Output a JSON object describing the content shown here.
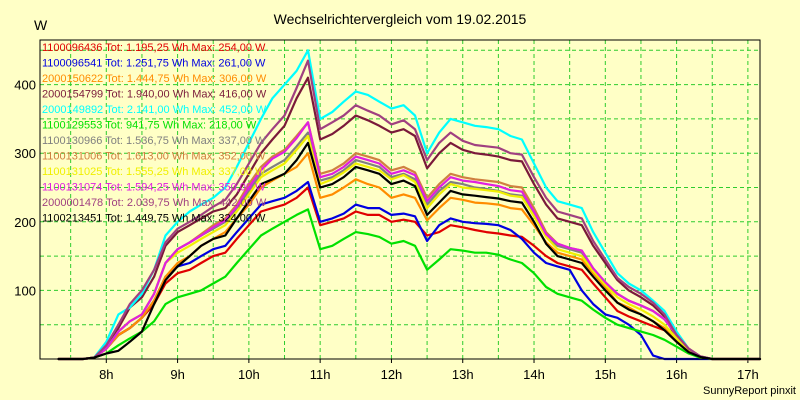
{
  "chart_data": {
    "type": "line",
    "title": "Wechselrichtervergleich vom 19.02.2015",
    "ylabel": "W",
    "xlabel": "",
    "xlim": [
      7.07,
      17.17
    ],
    "ylim": [
      0,
      465
    ],
    "x_ticks": [
      {
        "value": 8,
        "label": "8h"
      },
      {
        "value": 9,
        "label": "9h"
      },
      {
        "value": 10,
        "label": "10h"
      },
      {
        "value": 11,
        "label": "11h"
      },
      {
        "value": 12,
        "label": "12h"
      },
      {
        "value": 13,
        "label": "13h"
      },
      {
        "value": 14,
        "label": "14h"
      },
      {
        "value": 15,
        "label": "15h"
      },
      {
        "value": 16,
        "label": "16h"
      },
      {
        "value": 17,
        "label": "17h"
      }
    ],
    "y_ticks": [
      100,
      200,
      300,
      400
    ],
    "x_grid": [
      7.5,
      8,
      8.5,
      9,
      9.5,
      10,
      10.5,
      11,
      11.5,
      12,
      12.5,
      13,
      13.5,
      14,
      14.5,
      15,
      15.5,
      16,
      16.5,
      17
    ],
    "y_grid": [
      50,
      100,
      150,
      200,
      250,
      300,
      350,
      400,
      450
    ],
    "credit": "SunnyReport pinxit",
    "x": [
      7.33,
      7.67,
      7.83,
      8.0,
      8.17,
      8.33,
      8.5,
      8.67,
      8.83,
      9.0,
      9.17,
      9.33,
      9.5,
      9.67,
      9.83,
      10.0,
      10.17,
      10.33,
      10.5,
      10.67,
      10.83,
      11.0,
      11.17,
      11.33,
      11.5,
      11.67,
      11.83,
      12.0,
      12.17,
      12.33,
      12.5,
      12.67,
      12.83,
      13.0,
      13.17,
      13.33,
      13.5,
      13.67,
      13.83,
      14.0,
      14.17,
      14.33,
      14.5,
      14.67,
      14.83,
      15.0,
      15.17,
      15.33,
      15.5,
      15.67,
      15.83,
      16.0,
      16.17,
      16.33,
      16.5,
      16.67,
      16.83,
      17.0,
      17.17
    ],
    "series": [
      {
        "name": "1100096436",
        "legend": "1100096436 Tot: 1.195,25 Wh Max: 254,00 W",
        "color": "#e00000",
        "values": [
          0,
          0,
          2,
          15,
          35,
          45,
          60,
          80,
          110,
          125,
          130,
          140,
          150,
          155,
          175,
          195,
          215,
          220,
          225,
          235,
          250,
          195,
          200,
          205,
          215,
          210,
          210,
          200,
          203,
          200,
          180,
          185,
          195,
          192,
          188,
          185,
          183,
          180,
          178,
          165,
          150,
          140,
          135,
          130,
          110,
          90,
          70,
          62,
          55,
          48,
          42,
          25,
          10,
          3,
          0,
          0,
          0,
          0,
          0
        ]
      },
      {
        "name": "1100096541",
        "legend": "1100096541 Tot: 1.251,75 Wh Max: 261,00 W",
        "color": "#0000e0",
        "values": [
          0,
          0,
          2,
          15,
          35,
          45,
          60,
          85,
          120,
          135,
          140,
          150,
          160,
          165,
          185,
          205,
          225,
          230,
          235,
          245,
          258,
          200,
          205,
          212,
          225,
          220,
          220,
          210,
          212,
          208,
          172,
          195,
          205,
          200,
          198,
          197,
          195,
          188,
          175,
          155,
          140,
          135,
          130,
          100,
          80,
          65,
          60,
          50,
          35,
          5,
          0,
          0,
          0,
          0,
          0,
          0,
          0,
          0,
          0
        ]
      },
      {
        "name": "2000150622",
        "legend": "2000150622 Tot: 1.444,75 Wh Max: 306,00 W",
        "color": "#ff8c00",
        "values": [
          0,
          0,
          2,
          15,
          35,
          45,
          60,
          85,
          120,
          140,
          150,
          165,
          175,
          185,
          205,
          225,
          250,
          260,
          270,
          280,
          300,
          235,
          240,
          250,
          262,
          255,
          250,
          235,
          240,
          235,
          202,
          220,
          235,
          232,
          228,
          227,
          225,
          220,
          218,
          195,
          170,
          155,
          150,
          145,
          125,
          105,
          82,
          75,
          65,
          55,
          45,
          25,
          10,
          3,
          0,
          0,
          0,
          0,
          0
        ]
      },
      {
        "name": "2000154799",
        "legend": "2000154799 Tot: 1.940,00 Wh Max: 416,00 W",
        "color": "#7a1a3a",
        "values": [
          0,
          0,
          2,
          20,
          45,
          75,
          90,
          120,
          165,
          185,
          195,
          205,
          215,
          220,
          240,
          270,
          300,
          320,
          340,
          380,
          410,
          320,
          328,
          340,
          355,
          348,
          340,
          330,
          335,
          325,
          278,
          300,
          315,
          305,
          300,
          298,
          295,
          290,
          288,
          255,
          225,
          205,
          200,
          195,
          165,
          140,
          115,
          100,
          90,
          78,
          62,
          30,
          12,
          3,
          0,
          0,
          0,
          0,
          0
        ]
      },
      {
        "name": "2000149892",
        "legend": "2000149892 Tot: 2.141,00 Wh Max: 452,00 W",
        "color": "#00ffff",
        "values": [
          0,
          0,
          2,
          25,
          65,
          75,
          95,
          130,
          180,
          200,
          215,
          225,
          235,
          250,
          280,
          315,
          350,
          380,
          400,
          420,
          450,
          350,
          360,
          375,
          390,
          385,
          375,
          365,
          370,
          355,
          300,
          330,
          350,
          345,
          340,
          338,
          335,
          325,
          320,
          285,
          250,
          230,
          225,
          220,
          185,
          155,
          125,
          110,
          100,
          85,
          70,
          40,
          15,
          4,
          0,
          0,
          0,
          0,
          0
        ]
      },
      {
        "name": "1100129553",
        "legend": "1100129553 Tot: 941,75 Wh Max: 218,00 W",
        "color": "#00e000",
        "values": [
          0,
          0,
          2,
          8,
          20,
          30,
          40,
          55,
          80,
          90,
          95,
          100,
          110,
          120,
          140,
          160,
          180,
          190,
          200,
          210,
          218,
          160,
          165,
          175,
          185,
          182,
          178,
          168,
          172,
          165,
          130,
          145,
          160,
          158,
          155,
          155,
          152,
          145,
          140,
          125,
          105,
          95,
          90,
          85,
          72,
          60,
          50,
          45,
          40,
          35,
          28,
          18,
          8,
          2,
          0,
          0,
          0,
          0,
          0
        ]
      },
      {
        "name": "1100130966",
        "legend": "1100130966 Tot: 1.536,75 Wh Max: 337,00 W",
        "color": "#808080",
        "values": [
          0,
          0,
          2,
          15,
          40,
          55,
          65,
          95,
          140,
          160,
          170,
          180,
          190,
          200,
          220,
          245,
          270,
          280,
          290,
          310,
          330,
          260,
          265,
          275,
          290,
          285,
          280,
          265,
          270,
          262,
          225,
          245,
          258,
          255,
          250,
          248,
          245,
          240,
          238,
          210,
          180,
          165,
          160,
          155,
          130,
          110,
          95,
          85,
          78,
          70,
          58,
          35,
          15,
          4,
          0,
          0,
          0,
          0,
          0
        ]
      },
      {
        "name": "1100131006",
        "legend": "1100131006 Tot: 1.613,00 Wh Max: 352,00 W",
        "color": "#d08040",
        "values": [
          0,
          0,
          2,
          15,
          40,
          55,
          65,
          95,
          140,
          160,
          170,
          182,
          195,
          205,
          225,
          255,
          280,
          295,
          305,
          325,
          345,
          270,
          275,
          285,
          300,
          295,
          290,
          275,
          280,
          272,
          235,
          255,
          270,
          265,
          262,
          260,
          258,
          252,
          250,
          220,
          185,
          168,
          162,
          158,
          132,
          112,
          95,
          85,
          78,
          70,
          58,
          35,
          15,
          4,
          0,
          0,
          0,
          0,
          0
        ]
      },
      {
        "name": "1100131025",
        "legend": "1100131025 Tot: 1.555,25 Wh Max: 337,00 W",
        "color": "#f0f000",
        "values": [
          0,
          0,
          2,
          15,
          40,
          55,
          65,
          95,
          140,
          155,
          165,
          175,
          185,
          195,
          215,
          240,
          265,
          275,
          285,
          305,
          325,
          255,
          262,
          272,
          285,
          280,
          275,
          262,
          268,
          258,
          220,
          240,
          255,
          250,
          248,
          246,
          244,
          238,
          236,
          208,
          178,
          160,
          155,
          150,
          128,
          108,
          90,
          80,
          72,
          62,
          50,
          30,
          12,
          3,
          0,
          0,
          0,
          0,
          0
        ]
      },
      {
        "name": "1100131074",
        "legend": "1100131074 Tot: 1.594,25 Wh Max: 350,00 W",
        "color": "#e020e0",
        "values": [
          0,
          0,
          2,
          15,
          40,
          55,
          65,
          95,
          140,
          160,
          170,
          180,
          192,
          202,
          222,
          250,
          275,
          292,
          302,
          322,
          345,
          265,
          270,
          280,
          295,
          290,
          285,
          270,
          275,
          268,
          230,
          250,
          265,
          260,
          258,
          255,
          252,
          246,
          244,
          215,
          182,
          168,
          162,
          158,
          132,
          112,
          95,
          85,
          78,
          70,
          58,
          35,
          15,
          4,
          0,
          0,
          0,
          0,
          0
        ]
      },
      {
        "name": "2000001478",
        "legend": "2000001478 Tot: 2.039,75 Wh Max: 442,00 W",
        "color": "#a04080",
        "values": [
          0,
          0,
          2,
          20,
          50,
          80,
          100,
          130,
          170,
          190,
          200,
          210,
          222,
          232,
          255,
          285,
          315,
          335,
          355,
          395,
          435,
          335,
          345,
          355,
          370,
          362,
          355,
          342,
          348,
          335,
          290,
          315,
          330,
          318,
          312,
          310,
          308,
          300,
          298,
          265,
          235,
          215,
          210,
          205,
          172,
          145,
          118,
          105,
          95,
          82,
          65,
          35,
          15,
          4,
          0,
          0,
          0,
          0,
          0
        ]
      },
      {
        "name": "1100213451",
        "legend": "1100213451 Tot: 1.449,75 Wh Max: 324,00 W",
        "color": "#000000",
        "values": [
          0,
          0,
          2,
          8,
          12,
          25,
          40,
          80,
          115,
          135,
          150,
          165,
          175,
          180,
          205,
          230,
          255,
          262,
          270,
          290,
          315,
          250,
          255,
          265,
          280,
          275,
          270,
          255,
          260,
          252,
          210,
          228,
          245,
          240,
          238,
          236,
          234,
          230,
          228,
          200,
          168,
          150,
          145,
          140,
          120,
          100,
          82,
          72,
          65,
          55,
          42,
          25,
          10,
          3,
          0,
          0,
          0,
          0,
          0
        ]
      }
    ]
  }
}
